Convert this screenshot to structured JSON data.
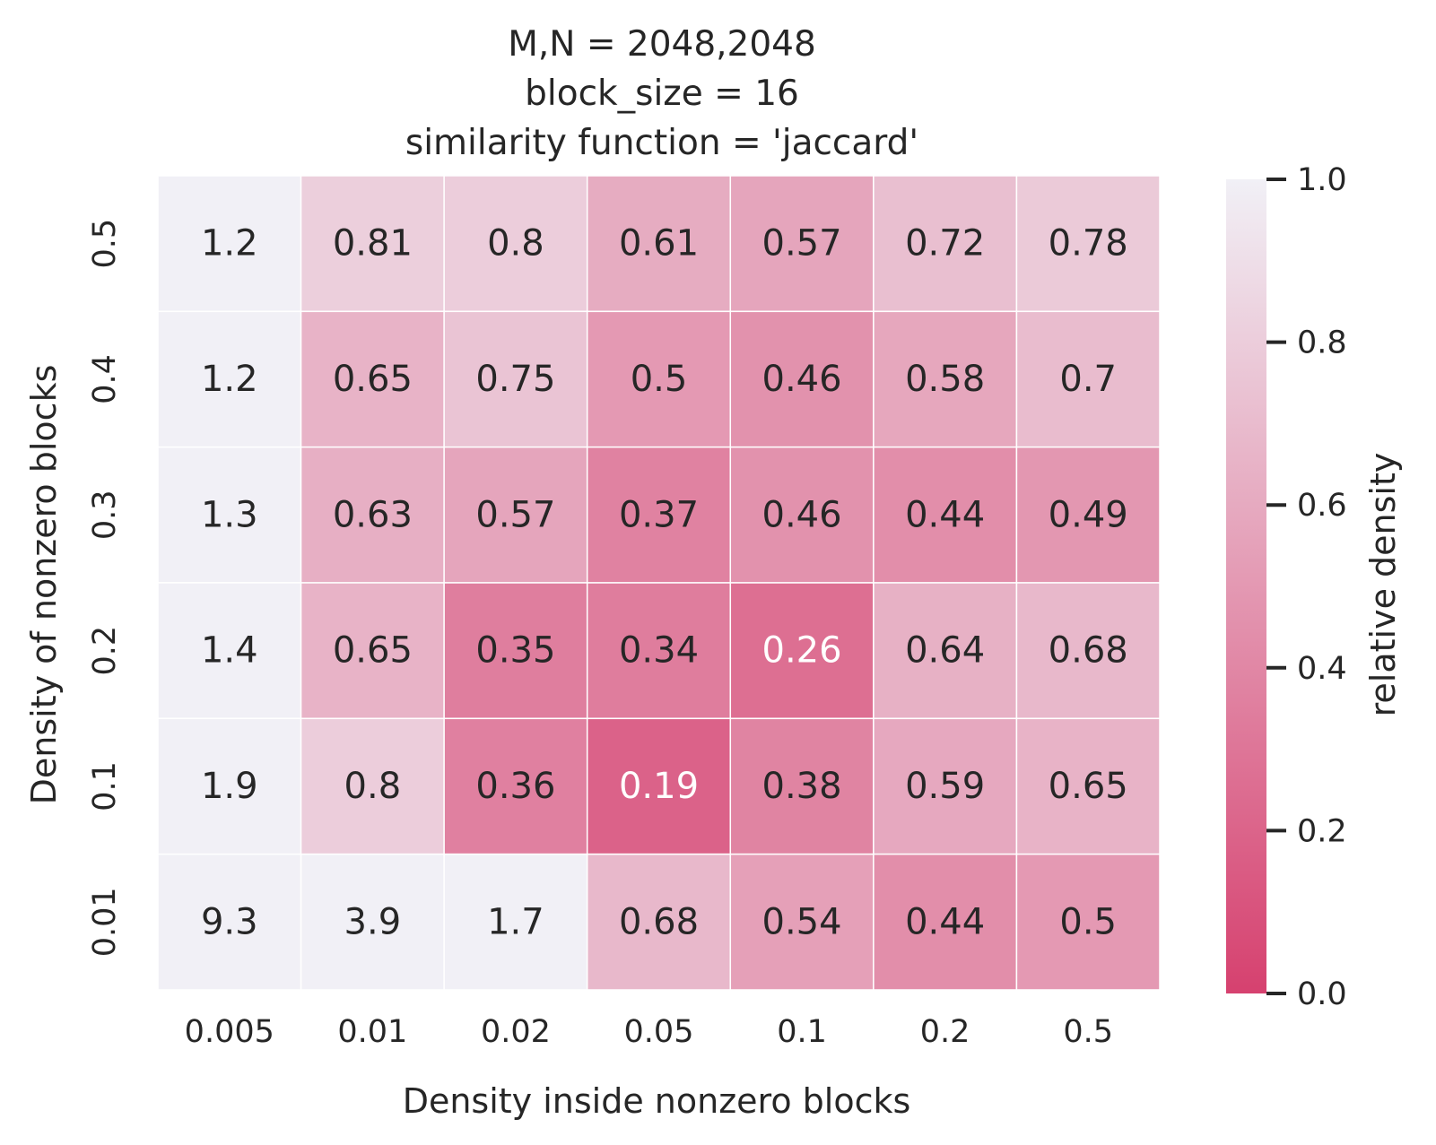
{
  "chart_data": {
    "type": "heatmap",
    "title_lines": [
      "M,N = 2048,2048",
      "block_size = 16",
      "similarity function = 'jaccard'"
    ],
    "xlabel": "Density inside nonzero blocks",
    "ylabel": "Density of nonzero blocks",
    "x_categories": [
      "0.005",
      "0.01",
      "0.02",
      "0.05",
      "0.1",
      "0.2",
      "0.5"
    ],
    "y_categories": [
      "0.5",
      "0.4",
      "0.3",
      "0.2",
      "0.1",
      "0.01"
    ],
    "values": [
      [
        1.2,
        0.81,
        0.8,
        0.61,
        0.57,
        0.72,
        0.78
      ],
      [
        1.2,
        0.65,
        0.75,
        0.5,
        0.46,
        0.58,
        0.7
      ],
      [
        1.3,
        0.63,
        0.57,
        0.37,
        0.46,
        0.44,
        0.49
      ],
      [
        1.4,
        0.65,
        0.35,
        0.34,
        0.26,
        0.64,
        0.68
      ],
      [
        1.9,
        0.8,
        0.36,
        0.19,
        0.38,
        0.59,
        0.65
      ],
      [
        9.3,
        3.9,
        1.7,
        0.68,
        0.54,
        0.44,
        0.5
      ]
    ],
    "cell_labels": [
      [
        "1.2",
        "0.81",
        "0.8",
        "0.61",
        "0.57",
        "0.72",
        "0.78"
      ],
      [
        "1.2",
        "0.65",
        "0.75",
        "0.5",
        "0.46",
        "0.58",
        "0.7"
      ],
      [
        "1.3",
        "0.63",
        "0.57",
        "0.37",
        "0.46",
        "0.44",
        "0.49"
      ],
      [
        "1.4",
        "0.65",
        "0.35",
        "0.34",
        "0.26",
        "0.64",
        "0.68"
      ],
      [
        "1.9",
        "0.8",
        "0.36",
        "0.19",
        "0.38",
        "0.59",
        "0.65"
      ],
      [
        "9.3",
        "3.9",
        "1.7",
        "0.68",
        "0.54",
        "0.44",
        "0.5"
      ]
    ],
    "colorbar": {
      "label": "relative density",
      "range": [
        0.0,
        1.0
      ],
      "ticks": [
        0.0,
        0.2,
        0.4,
        0.6,
        0.8,
        1.0
      ],
      "tick_labels": [
        "0.0",
        "0.2",
        "0.4",
        "0.6",
        "0.8",
        "1.0"
      ],
      "color_low": "#d6416f",
      "color_high": "#f1f0f6"
    },
    "text_color_dark": "#262626",
    "text_color_light": "#ffffff",
    "grid_color": "#ffffff"
  }
}
